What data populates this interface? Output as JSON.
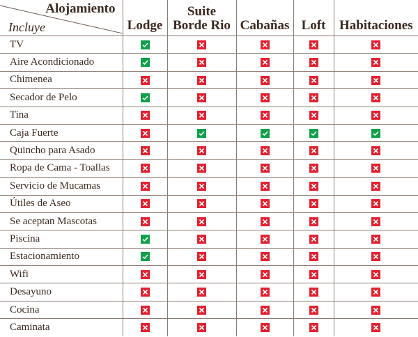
{
  "header": {
    "corner_top": "Alojamiento",
    "corner_bottom": "Incluye",
    "columns": [
      "Lodge",
      "Suite Borde Rio",
      "Cabañas",
      "Loft",
      "Habitaciones"
    ]
  },
  "colors": {
    "yes": "#0fa14a",
    "no": "#e3202f"
  },
  "rows": [
    {
      "label": "TV",
      "values": [
        true,
        false,
        false,
        false,
        false
      ]
    },
    {
      "label": "Aire Acondicionado",
      "values": [
        true,
        false,
        false,
        false,
        false
      ]
    },
    {
      "label": "Chimenea",
      "values": [
        false,
        false,
        false,
        false,
        false
      ]
    },
    {
      "label": "Secador de Pelo",
      "values": [
        true,
        false,
        false,
        false,
        false
      ]
    },
    {
      "label": "Tina",
      "values": [
        false,
        false,
        false,
        false,
        false
      ]
    },
    {
      "label": "Caja Fuerte",
      "values": [
        false,
        true,
        true,
        true,
        true
      ]
    },
    {
      "label": "Quincho para Asado",
      "values": [
        false,
        false,
        false,
        false,
        false
      ]
    },
    {
      "label": "Ropa de Cama - Toallas",
      "values": [
        false,
        false,
        false,
        false,
        false
      ]
    },
    {
      "label": "Servicio de Mucamas",
      "values": [
        false,
        false,
        false,
        false,
        false
      ]
    },
    {
      "label": "Útiles de Aseo",
      "values": [
        false,
        false,
        false,
        false,
        false
      ]
    },
    {
      "label": "Se aceptan Mascotas",
      "values": [
        false,
        false,
        false,
        false,
        false
      ]
    },
    {
      "label": "Piscina",
      "values": [
        true,
        false,
        false,
        false,
        false
      ]
    },
    {
      "label": "Estacionamiento",
      "values": [
        true,
        false,
        false,
        false,
        false
      ]
    },
    {
      "label": "Wifi",
      "values": [
        false,
        false,
        false,
        false,
        false
      ]
    },
    {
      "label": "Desayuno",
      "values": [
        false,
        false,
        false,
        false,
        false
      ]
    },
    {
      "label": "Cocina",
      "values": [
        false,
        false,
        false,
        false,
        false
      ]
    },
    {
      "label": "Caminata",
      "values": [
        false,
        false,
        false,
        false,
        false
      ]
    }
  ]
}
